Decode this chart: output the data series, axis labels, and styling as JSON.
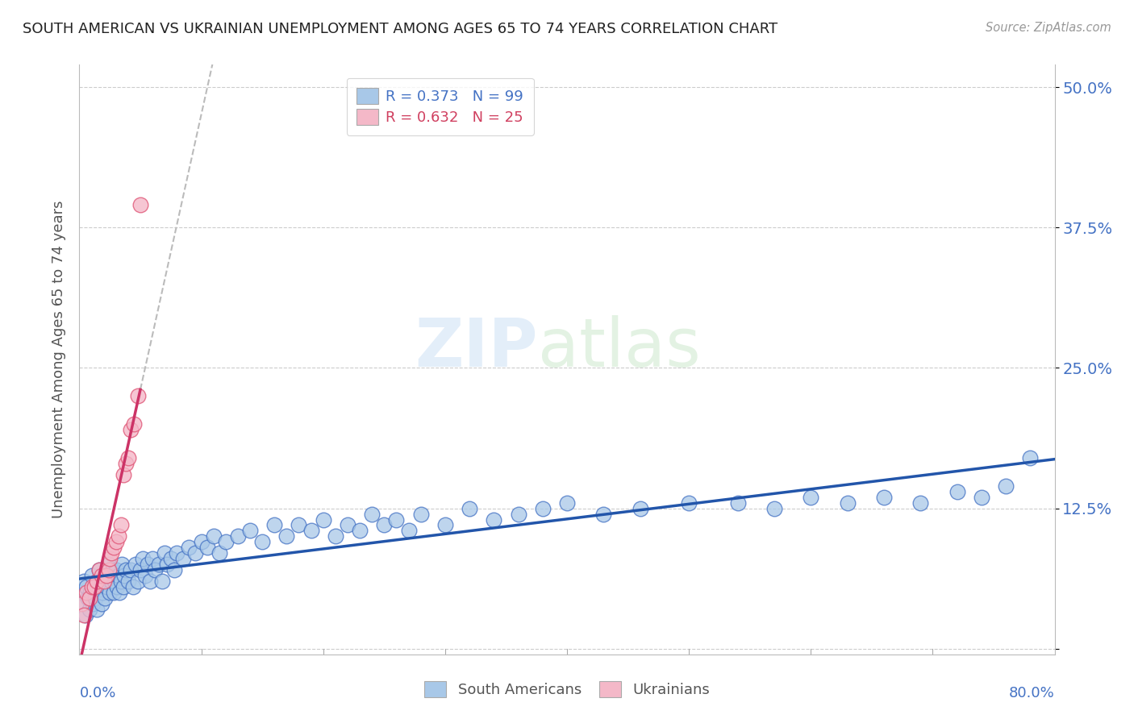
{
  "title": "SOUTH AMERICAN VS UKRAINIAN UNEMPLOYMENT AMONG AGES 65 TO 74 YEARS CORRELATION CHART",
  "source_text": "Source: ZipAtlas.com",
  "ylabel": "Unemployment Among Ages 65 to 74 years",
  "xlim": [
    0.0,
    0.8
  ],
  "ylim": [
    -0.005,
    0.52
  ],
  "ytick_vals": [
    0.0,
    0.125,
    0.25,
    0.375,
    0.5
  ],
  "ytick_labels": [
    "",
    "12.5%",
    "25.0%",
    "37.5%",
    "50.0%"
  ],
  "legend_r1": "R = 0.373",
  "legend_n1": "N = 99",
  "legend_r2": "R = 0.632",
  "legend_n2": "N = 25",
  "color_blue": "#a8c8e8",
  "color_pink": "#f4b8c8",
  "color_blue_dark": "#4472c4",
  "color_pink_dark": "#e05878",
  "color_blue_text": "#4472c4",
  "color_pink_text": "#d04060",
  "trendline_blue": "#2255aa",
  "trendline_pink": "#cc3366",
  "trendline_dashed": "#cccccc",
  "background": "#ffffff",
  "grid_color": "#cccccc",
  "sa_x": [
    0.002,
    0.003,
    0.004,
    0.005,
    0.006,
    0.007,
    0.008,
    0.009,
    0.01,
    0.011,
    0.012,
    0.013,
    0.014,
    0.015,
    0.016,
    0.017,
    0.018,
    0.019,
    0.02,
    0.021,
    0.022,
    0.023,
    0.024,
    0.025,
    0.026,
    0.027,
    0.028,
    0.029,
    0.03,
    0.031,
    0.032,
    0.033,
    0.034,
    0.035,
    0.036,
    0.037,
    0.038,
    0.04,
    0.042,
    0.044,
    0.046,
    0.048,
    0.05,
    0.052,
    0.054,
    0.056,
    0.058,
    0.06,
    0.062,
    0.065,
    0.068,
    0.07,
    0.072,
    0.075,
    0.078,
    0.08,
    0.085,
    0.09,
    0.095,
    0.1,
    0.105,
    0.11,
    0.115,
    0.12,
    0.13,
    0.14,
    0.15,
    0.16,
    0.17,
    0.18,
    0.19,
    0.2,
    0.21,
    0.22,
    0.23,
    0.24,
    0.25,
    0.26,
    0.27,
    0.28,
    0.3,
    0.32,
    0.34,
    0.36,
    0.38,
    0.4,
    0.43,
    0.46,
    0.5,
    0.54,
    0.57,
    0.6,
    0.63,
    0.66,
    0.69,
    0.72,
    0.74,
    0.76,
    0.78
  ],
  "sa_y": [
    0.05,
    0.04,
    0.06,
    0.03,
    0.055,
    0.045,
    0.035,
    0.05,
    0.065,
    0.04,
    0.055,
    0.045,
    0.035,
    0.06,
    0.07,
    0.055,
    0.04,
    0.05,
    0.065,
    0.045,
    0.055,
    0.065,
    0.075,
    0.05,
    0.06,
    0.07,
    0.05,
    0.06,
    0.07,
    0.055,
    0.065,
    0.05,
    0.06,
    0.075,
    0.055,
    0.065,
    0.07,
    0.06,
    0.07,
    0.055,
    0.075,
    0.06,
    0.07,
    0.08,
    0.065,
    0.075,
    0.06,
    0.08,
    0.07,
    0.075,
    0.06,
    0.085,
    0.075,
    0.08,
    0.07,
    0.085,
    0.08,
    0.09,
    0.085,
    0.095,
    0.09,
    0.1,
    0.085,
    0.095,
    0.1,
    0.105,
    0.095,
    0.11,
    0.1,
    0.11,
    0.105,
    0.115,
    0.1,
    0.11,
    0.105,
    0.12,
    0.11,
    0.115,
    0.105,
    0.12,
    0.11,
    0.125,
    0.115,
    0.12,
    0.125,
    0.13,
    0.12,
    0.125,
    0.13,
    0.13,
    0.125,
    0.135,
    0.13,
    0.135,
    0.13,
    0.14,
    0.135,
    0.145,
    0.17
  ],
  "uk_x": [
    0.002,
    0.004,
    0.006,
    0.008,
    0.01,
    0.012,
    0.014,
    0.016,
    0.018,
    0.02,
    0.022,
    0.024,
    0.025,
    0.026,
    0.028,
    0.03,
    0.032,
    0.034,
    0.036,
    0.038,
    0.04,
    0.042,
    0.045,
    0.048,
    0.05
  ],
  "uk_y": [
    0.04,
    0.03,
    0.05,
    0.045,
    0.055,
    0.055,
    0.06,
    0.07,
    0.065,
    0.06,
    0.065,
    0.07,
    0.08,
    0.085,
    0.09,
    0.095,
    0.1,
    0.11,
    0.155,
    0.165,
    0.17,
    0.195,
    0.2,
    0.225,
    0.395
  ]
}
